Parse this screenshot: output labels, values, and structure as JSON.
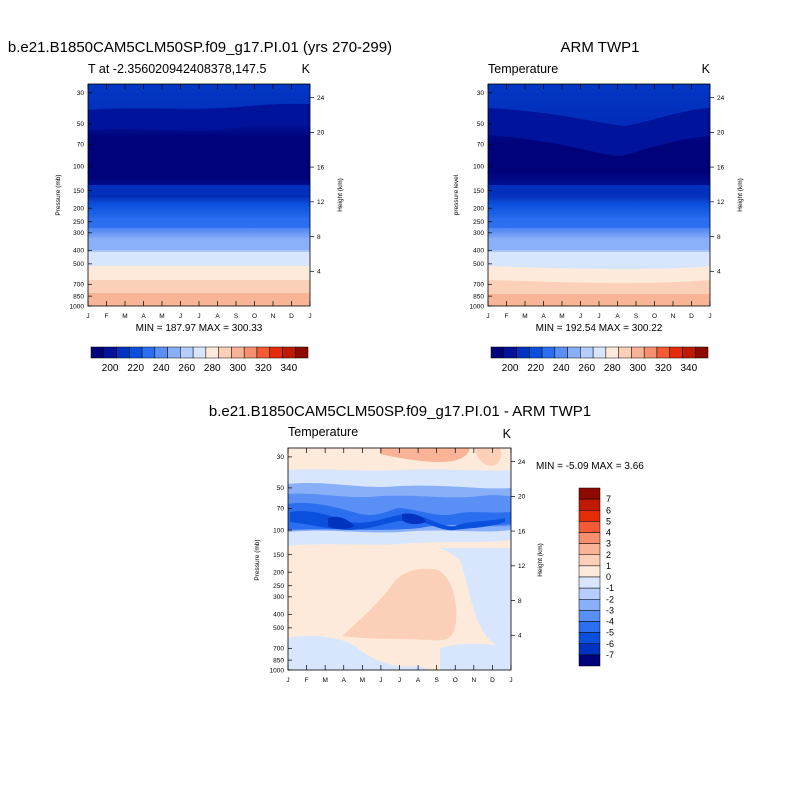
{
  "months": [
    "J",
    "F",
    "M",
    "A",
    "M",
    "J",
    "J",
    "A",
    "S",
    "O",
    "N",
    "D",
    "J"
  ],
  "pressure_ticks": [
    "30",
    "50",
    "70",
    "100",
    "150",
    "200",
    "250",
    "300",
    "400",
    "500",
    "700",
    "850",
    "1000"
  ],
  "pressure_values": [
    30,
    50,
    70,
    100,
    150,
    200,
    250,
    300,
    400,
    500,
    700,
    850,
    1000
  ],
  "height_ticks": [
    "24",
    "20",
    "16",
    "12",
    "8",
    "4"
  ],
  "colors": {
    "temperature": [
      "#00027a",
      "#00139a",
      "#0233c0",
      "#0b50dd",
      "#2b6ef0",
      "#5a90f5",
      "#8aaff9",
      "#b5cefb",
      "#d7e6fd",
      "#fdeadb",
      "#fcd0b8",
      "#f9b397",
      "#f68f6f",
      "#f45a35",
      "#e22d06",
      "#c11a03",
      "#8c0a00"
    ],
    "difference": [
      "#00027a",
      "#0233c0",
      "#0b50dd",
      "#2b6ef0",
      "#5a90f5",
      "#8aaff9",
      "#b5cefb",
      "#d7e6fd",
      "#fdeadb",
      "#fcd0b8",
      "#f9b397",
      "#f68f6f",
      "#f45a35",
      "#e22d06",
      "#c11a03",
      "#8c0a00"
    ]
  },
  "panels": {
    "model": {
      "title": "b.e21.B1850CAM5CLM50SP.f09_g17.PI.01 (yrs 270-299)",
      "left_label": "T at -2.356020942408378,147.5",
      "right_label": "K",
      "ylabel": "Pressure (mb)",
      "ylabel_right": "Height (km)",
      "minmax": "MIN = 187.97 MAX = 300.33"
    },
    "obs": {
      "title": "ARM TWP1",
      "left_label": "Temperature",
      "right_label": "K",
      "ylabel": "pressure level",
      "ylabel_right": "Height (km)",
      "minmax": "MIN = 192.54 MAX = 300.22"
    },
    "diff": {
      "title": "b.e21.B1850CAM5CLM50SP.f09_g17.PI.01 - ARM TWP1",
      "left_label": "Temperature",
      "right_label": "K",
      "ylabel": "Pressure (mb)",
      "ylabel_right": "Height (km)",
      "minmax": "MIN =  -5.09 MAX =   3.66"
    }
  },
  "colorbar_temp": {
    "labels": [
      "200",
      "220",
      "240",
      "260",
      "280",
      "300",
      "320",
      "340"
    ]
  },
  "colorbar_diff": {
    "labels": [
      "7",
      "6",
      "5",
      "4",
      "3",
      "2",
      "1",
      "0",
      "-1",
      "-2",
      "-3",
      "-4",
      "-5",
      "-6",
      "-7"
    ]
  },
  "chart_data": [
    {
      "type": "heatmap",
      "title": "b.e21.B1850CAM5CLM50SP.f09_g17.PI.01 (yrs 270-299)",
      "variable": "T at -2.356020942408378,147.5",
      "units": "K",
      "x": [
        "J",
        "F",
        "M",
        "A",
        "M",
        "J",
        "J",
        "A",
        "S",
        "O",
        "N",
        "D",
        "J"
      ],
      "y_pressure_mb": [
        30,
        50,
        70,
        100,
        150,
        200,
        250,
        300,
        400,
        500,
        700,
        850,
        1000
      ],
      "contour_levels": [
        195,
        200,
        205,
        210,
        215,
        220,
        225,
        230,
        235,
        240,
        245,
        250,
        255,
        260,
        265,
        270,
        275,
        280,
        285,
        290,
        295,
        300
      ],
      "z_min": 187.97,
      "z_max": 300.33,
      "approx_profile_K": {
        "30": 220,
        "50": 207,
        "70": 195,
        "100": 192,
        "150": 207,
        "200": 222,
        "250": 233,
        "300": 242,
        "400": 258,
        "500": 267,
        "700": 282,
        "850": 291,
        "1000": 300
      },
      "xlabel": "",
      "ylabel": "Pressure (mb)",
      "ylabel_right": "Height (km)"
    },
    {
      "type": "heatmap",
      "title": "ARM TWP1",
      "variable": "Temperature",
      "units": "K",
      "x": [
        "J",
        "F",
        "M",
        "A",
        "M",
        "J",
        "J",
        "A",
        "S",
        "O",
        "N",
        "D",
        "J"
      ],
      "y_pressure_mb": [
        30,
        50,
        70,
        100,
        150,
        200,
        250,
        300,
        400,
        500,
        700,
        850,
        1000
      ],
      "z_min": 192.54,
      "z_max": 300.22,
      "approx_profile_K": {
        "30": 220,
        "50": 207,
        "70": 198,
        "100": 194,
        "150": 206,
        "200": 221,
        "250": 232,
        "300": 242,
        "400": 257,
        "500": 267,
        "700": 282,
        "850": 290,
        "1000": 299
      },
      "ylabel": "pressure level",
      "ylabel_right": "Height (km)"
    },
    {
      "type": "heatmap",
      "title": "b.e21.B1850CAM5CLM50SP.f09_g17.PI.01 - ARM TWP1",
      "variable": "Temperature",
      "units": "K",
      "x": [
        "J",
        "F",
        "M",
        "A",
        "M",
        "J",
        "J",
        "A",
        "S",
        "O",
        "N",
        "D",
        "J"
      ],
      "y_pressure_mb": [
        30,
        50,
        70,
        100,
        150,
        200,
        250,
        300,
        400,
        500,
        700,
        850,
        1000
      ],
      "contour_levels": [
        -7,
        -6,
        -5,
        -4,
        -3,
        -2,
        -1,
        0,
        1,
        2,
        3,
        4,
        5,
        6,
        7
      ],
      "z_min": -5.09,
      "z_max": 3.66,
      "ylabel": "Pressure (mb)",
      "ylabel_right": "Height (km)"
    }
  ]
}
